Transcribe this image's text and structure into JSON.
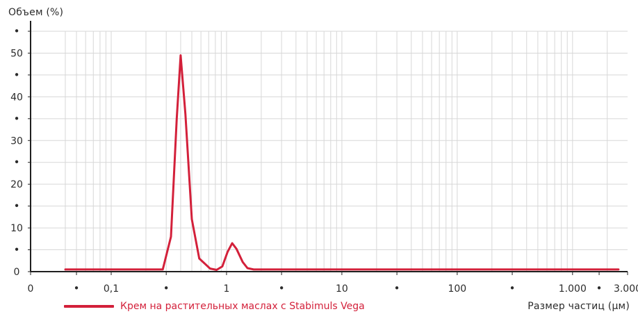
{
  "chart_data": {
    "type": "line",
    "x_scale": "log",
    "grid": true,
    "legend_placement": "bottom-left",
    "xlabel": "Размер частиц (μм)",
    "ylabel": "Объем (%)",
    "xlim": [
      0.02,
      3000
    ],
    "ylim": [
      0,
      55
    ],
    "x_tick_labels": [
      {
        "value": 0.02,
        "label": "0"
      },
      {
        "value": 0.05,
        "label": "•"
      },
      {
        "value": 0.1,
        "label": "0,1"
      },
      {
        "value": 0.3,
        "label": "•"
      },
      {
        "value": 1,
        "label": "1"
      },
      {
        "value": 3,
        "label": "•"
      },
      {
        "value": 10,
        "label": "10"
      },
      {
        "value": 30,
        "label": "•"
      },
      {
        "value": 100,
        "label": "100"
      },
      {
        "value": 300,
        "label": "•"
      },
      {
        "value": 1000,
        "label": "1.000"
      },
      {
        "value": 1700,
        "label": "•"
      },
      {
        "value": 3000,
        "label": "3.000"
      }
    ],
    "y_tick_labels": [
      {
        "value": 0,
        "label": "0"
      },
      {
        "value": 5,
        "label": "•"
      },
      {
        "value": 10,
        "label": "10"
      },
      {
        "value": 15,
        "label": "•"
      },
      {
        "value": 20,
        "label": "20"
      },
      {
        "value": 25,
        "label": "•"
      },
      {
        "value": 30,
        "label": "30"
      },
      {
        "value": 35,
        "label": "•"
      },
      {
        "value": 40,
        "label": "40"
      },
      {
        "value": 45,
        "label": "•"
      },
      {
        "value": 50,
        "label": "50"
      },
      {
        "value": 55,
        "label": "•"
      }
    ],
    "series": [
      {
        "name": "Крем на растительных маслах с Stabimuls Vega",
        "color": "#d3203a",
        "points": [
          [
            0.04,
            0.5
          ],
          [
            0.28,
            0.5
          ],
          [
            0.33,
            8
          ],
          [
            0.37,
            35
          ],
          [
            0.4,
            49.5
          ],
          [
            0.44,
            36
          ],
          [
            0.5,
            12
          ],
          [
            0.58,
            3
          ],
          [
            0.72,
            0.7
          ],
          [
            0.82,
            0.4
          ],
          [
            0.92,
            1.2
          ],
          [
            1.02,
            4.5
          ],
          [
            1.12,
            6.5
          ],
          [
            1.22,
            5.2
          ],
          [
            1.38,
            2.2
          ],
          [
            1.52,
            0.8
          ],
          [
            1.72,
            0.5
          ],
          [
            2500,
            0.5
          ]
        ]
      }
    ]
  }
}
